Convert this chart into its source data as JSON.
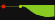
{
  "background_color": "#111111",
  "right_bg_color": "#111111",
  "line_color": "#88cc22",
  "fill_color": "#88cc22",
  "flat_line_color": "#556622",
  "dot1_color": "#dd2200",
  "dot2_color": "#aacc00",
  "dot1_x": 3,
  "dot2_x": 20,
  "flat_y": 14.5,
  "series_x": [
    20,
    22,
    24,
    26,
    28,
    30,
    32,
    34,
    36,
    38,
    40,
    42,
    44,
    46,
    48,
    50,
    52,
    54
  ],
  "series_y": [
    14.5,
    14.3,
    13.8,
    13.0,
    11.5,
    10.0,
    8.5,
    7.2,
    6.0,
    5.5,
    5.0,
    4.5,
    4.0,
    3.5,
    3.5,
    3.8,
    4.0,
    4.2
  ],
  "xlim": [
    0,
    55
  ],
  "ylim": [
    0,
    20
  ],
  "baseline_y": 15.5,
  "figsize": [
    0.55,
    0.2
  ],
  "dpi": 100
}
